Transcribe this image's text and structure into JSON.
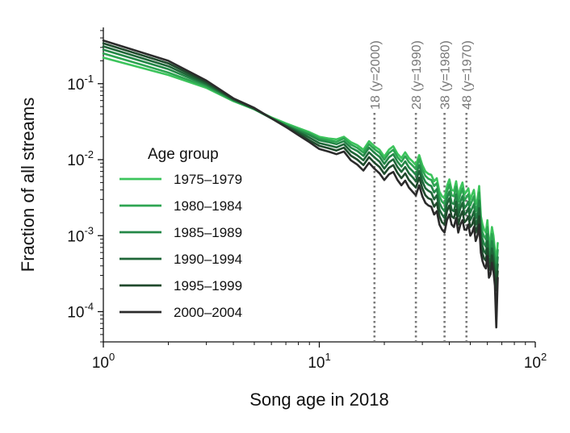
{
  "chart_data": {
    "type": "line",
    "xscale": "log",
    "yscale": "log",
    "xlabel": "Song age in 2018",
    "ylabel": "Fraction of all streams",
    "xlim": [
      1,
      100
    ],
    "ylim": [
      4e-05,
      0.55
    ],
    "xticks": [
      {
        "base": "10",
        "exp": "0"
      },
      {
        "base": "10",
        "exp": "1"
      },
      {
        "base": "10",
        "exp": "2"
      }
    ],
    "yticks": [
      {
        "base": "10",
        "exp": "-1"
      },
      {
        "base": "10",
        "exp": "-2"
      },
      {
        "base": "10",
        "exp": "-3"
      },
      {
        "base": "10",
        "exp": "-4"
      }
    ],
    "legend": {
      "title": "Age group",
      "position": "center-left"
    },
    "vlines": [
      {
        "x": 18,
        "label": "18 (y=2000)"
      },
      {
        "x": 28,
        "label": "28 (y=1990)"
      },
      {
        "x": 38,
        "label": "38 (y=1980)"
      },
      {
        "x": 48,
        "label": "48 (y=1970)"
      }
    ],
    "x": [
      1,
      2,
      3,
      4,
      5,
      6,
      7,
      8,
      9,
      10,
      11,
      12,
      13,
      14,
      15,
      16,
      17,
      18,
      19,
      20,
      21,
      22,
      23,
      24,
      25,
      26,
      27,
      28,
      29,
      30,
      31,
      32,
      33,
      34,
      35,
      36,
      37,
      38,
      39,
      40,
      41,
      42,
      43,
      44,
      45,
      46,
      47,
      48,
      49,
      50,
      51,
      52,
      53,
      54,
      55,
      56,
      57,
      58,
      59,
      60,
      61,
      62,
      63,
      64,
      65,
      66,
      67
    ],
    "series": [
      {
        "name": "1975–1979",
        "color": "#3cc45c",
        "values": [
          0.22,
          0.13,
          0.088,
          0.059,
          0.046,
          0.036,
          0.03,
          0.026,
          0.023,
          0.02,
          0.019,
          0.0185,
          0.02,
          0.017,
          0.0155,
          0.0135,
          0.0175,
          0.015,
          0.0135,
          0.011,
          0.0135,
          0.015,
          0.012,
          0.0105,
          0.0125,
          0.0105,
          0.0095,
          0.0085,
          0.0115,
          0.0085,
          0.007,
          0.0065,
          0.0063,
          0.0052,
          0.0057,
          0.0038,
          0.0033,
          0.0031,
          0.0045,
          0.0055,
          0.004,
          0.0039,
          0.0052,
          0.0033,
          0.0042,
          0.005,
          0.0035,
          0.0038,
          0.0042,
          0.003,
          0.0035,
          0.004,
          0.0026,
          0.003,
          0.0045,
          0.0018,
          0.0014,
          0.0012,
          0.0011,
          0.0016,
          0.0008,
          0.0009,
          0.0013,
          0.001,
          0.00065,
          0.00045,
          0.0008
        ]
      },
      {
        "name": "1980–1984",
        "color": "#2ea552",
        "values": [
          0.25,
          0.14,
          0.092,
          0.06,
          0.046,
          0.035,
          0.029,
          0.025,
          0.022,
          0.019,
          0.018,
          0.0172,
          0.019,
          0.0158,
          0.0143,
          0.0124,
          0.016,
          0.0137,
          0.0123,
          0.01,
          0.0122,
          0.0135,
          0.0108,
          0.0094,
          0.0111,
          0.0093,
          0.0084,
          0.0075,
          0.0101,
          0.0074,
          0.0061,
          0.0056,
          0.0054,
          0.0045,
          0.0049,
          0.0033,
          0.0028,
          0.0026,
          0.0038,
          0.0047,
          0.0034,
          0.0033,
          0.0044,
          0.0028,
          0.0035,
          0.0042,
          0.0029,
          0.0032,
          0.0035,
          0.0025,
          0.0029,
          0.0033,
          0.0021,
          0.0025,
          0.0037,
          0.0015,
          0.0011,
          0.00098,
          0.0009,
          0.0013,
          0.00065,
          0.00073,
          0.00105,
          0.0008,
          0.00052,
          0.00036,
          0.00065
        ]
      },
      {
        "name": "1985–1989",
        "color": "#248747",
        "values": [
          0.28,
          0.155,
          0.096,
          0.061,
          0.047,
          0.035,
          0.028,
          0.024,
          0.021,
          0.018,
          0.017,
          0.016,
          0.0175,
          0.0144,
          0.013,
          0.0112,
          0.0144,
          0.0123,
          0.0109,
          0.0088,
          0.0107,
          0.0118,
          0.0094,
          0.0081,
          0.0095,
          0.0079,
          0.0071,
          0.0063,
          0.0085,
          0.0062,
          0.0051,
          0.0047,
          0.0045,
          0.0037,
          0.0041,
          0.0027,
          0.0023,
          0.0021,
          0.0031,
          0.0038,
          0.0027,
          0.0026,
          0.0035,
          0.0022,
          0.0028,
          0.0033,
          0.0023,
          0.0025,
          0.0028,
          0.002,
          0.0023,
          0.0026,
          0.0017,
          0.002,
          0.0029,
          0.0012,
          0.0009,
          0.00078,
          0.00072,
          0.00105,
          0.00053,
          0.00059,
          0.00085,
          0.00065,
          0.00042,
          0.00029,
          0.00052
        ]
      },
      {
        "name": "1990–1994",
        "color": "#1f6638",
        "values": [
          0.31,
          0.17,
          0.1,
          0.062,
          0.047,
          0.035,
          0.028,
          0.023,
          0.0195,
          0.0165,
          0.0155,
          0.0145,
          0.016,
          0.0128,
          0.0114,
          0.0098,
          0.0125,
          0.0107,
          0.0094,
          0.0076,
          0.0092,
          0.0101,
          0.008,
          0.0069,
          0.008,
          0.0066,
          0.0059,
          0.0052,
          0.0071,
          0.0052,
          0.0042,
          0.0039,
          0.0037,
          0.003,
          0.0034,
          0.0022,
          0.0019,
          0.0017,
          0.0026,
          0.0031,
          0.0022,
          0.0021,
          0.0028,
          0.0018,
          0.0023,
          0.0027,
          0.0019,
          0.002,
          0.0023,
          0.0016,
          0.0018,
          0.0021,
          0.0014,
          0.0016,
          0.0023,
          0.00095,
          0.00072,
          0.00062,
          0.00058,
          0.00085,
          0.00043,
          0.00048,
          0.00068,
          0.00052,
          0.00034,
          0.00024,
          0.00042
        ]
      },
      {
        "name": "1995–1999",
        "color": "#1f4a2c",
        "values": [
          0.34,
          0.185,
          0.105,
          0.063,
          0.047,
          0.035,
          0.027,
          0.022,
          0.018,
          0.0152,
          0.0142,
          0.0132,
          0.0144,
          0.0113,
          0.01,
          0.0085,
          0.0108,
          0.0091,
          0.008,
          0.0065,
          0.0078,
          0.0085,
          0.0067,
          0.0057,
          0.0066,
          0.0054,
          0.0048,
          0.0043,
          0.0058,
          0.0042,
          0.0034,
          0.0031,
          0.003,
          0.0024,
          0.0027,
          0.0018,
          0.0015,
          0.0014,
          0.0021,
          0.0025,
          0.0018,
          0.0017,
          0.0022,
          0.0014,
          0.0018,
          0.0021,
          0.0015,
          0.0016,
          0.0018,
          0.0013,
          0.0014,
          0.0017,
          0.0011,
          0.0013,
          0.0018,
          0.00076,
          0.00058,
          0.0005,
          0.00047,
          0.00068,
          0.00035,
          0.00039,
          0.00055,
          0.00042,
          0.00027,
          0.00019,
          0.00034
        ]
      },
      {
        "name": "2000–2004",
        "color": "#2b2b2b",
        "values": [
          0.37,
          0.2,
          0.11,
          0.064,
          0.048,
          0.035,
          0.027,
          0.021,
          0.017,
          0.0138,
          0.0128,
          0.0118,
          0.0128,
          0.0098,
          0.0086,
          0.0072,
          0.0091,
          0.0076,
          0.0066,
          0.0054,
          0.0064,
          0.0069,
          0.0054,
          0.0046,
          0.0053,
          0.0043,
          0.0038,
          0.0034,
          0.0046,
          0.0033,
          0.0027,
          0.0025,
          0.0024,
          0.0019,
          0.0021,
          0.0014,
          0.0012,
          0.0011,
          0.0016,
          0.0019,
          0.0014,
          0.0013,
          0.0017,
          0.0011,
          0.0014,
          0.0016,
          0.0012,
          0.0012,
          0.0014,
          0.001,
          0.0011,
          0.0013,
          0.00085,
          0.001,
          0.0014,
          0.0006,
          0.00046,
          0.0004,
          0.00037,
          0.00054,
          0.00028,
          0.00031,
          0.00044,
          0.00034,
          0.00022,
          6.2e-05,
          0.00028
        ]
      }
    ]
  }
}
